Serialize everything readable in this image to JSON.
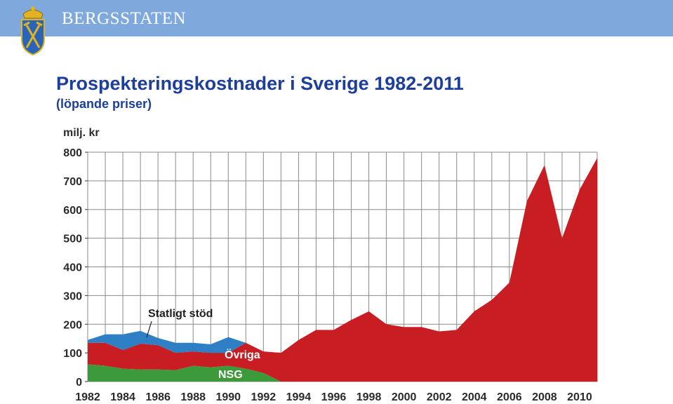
{
  "header": {
    "brand": "BERGSSTATEN",
    "logo_icon": "coat-of-arms-icon",
    "bar_color": "#7fa9dd"
  },
  "slide": {
    "title": "Prospekteringskostnader i Sverige 1982-2011",
    "subtitle": "(löpande priser)"
  },
  "chart_data": {
    "type": "area",
    "ylabel": "milj. kr",
    "ylim": [
      0,
      800
    ],
    "xlim": [
      1982,
      2011
    ],
    "grid": true,
    "y_ticks": [
      0,
      100,
      200,
      300,
      400,
      500,
      600,
      700,
      800
    ],
    "x_ticks": [
      1982,
      1984,
      1986,
      1988,
      1990,
      1992,
      1994,
      1996,
      1998,
      2000,
      2002,
      2004,
      2006,
      2008,
      2010
    ],
    "stacked": true,
    "series": [
      {
        "name": "NSG",
        "color": "#3c9a3a",
        "x": [
          1982,
          1983,
          1984,
          1985,
          1986,
          1987,
          1988,
          1989,
          1990,
          1991,
          1992,
          1993
        ],
        "values": [
          60,
          55,
          45,
          42,
          42,
          40,
          55,
          50,
          55,
          45,
          30,
          0
        ]
      },
      {
        "name": "Övriga",
        "color": "#c81d22",
        "x": [
          1982,
          1983,
          1984,
          1985,
          1986,
          1987,
          1988,
          1989,
          1990,
          1991,
          1992,
          1993,
          1994,
          1995,
          1996,
          1997,
          1998,
          1999,
          2000,
          2001,
          2002,
          2003,
          2004,
          2005,
          2006,
          2007,
          2008,
          2009,
          2010,
          2011
        ],
        "values": [
          75,
          80,
          65,
          90,
          85,
          60,
          50,
          50,
          45,
          90,
          75,
          100,
          145,
          180,
          180,
          215,
          245,
          200,
          190,
          190,
          175,
          180,
          245,
          285,
          345,
          630,
          755,
          500,
          670,
          780
        ]
      },
      {
        "name": "Statligt stöd",
        "color": "#2e7fc4",
        "x": [
          1982,
          1983,
          1984,
          1985,
          1986,
          1987,
          1988,
          1989,
          1990,
          1991
        ],
        "values": [
          10,
          30,
          55,
          45,
          25,
          35,
          30,
          30,
          55,
          0
        ]
      }
    ],
    "annotations": [
      "Statligt stöd",
      "Övriga",
      "NSG"
    ]
  }
}
